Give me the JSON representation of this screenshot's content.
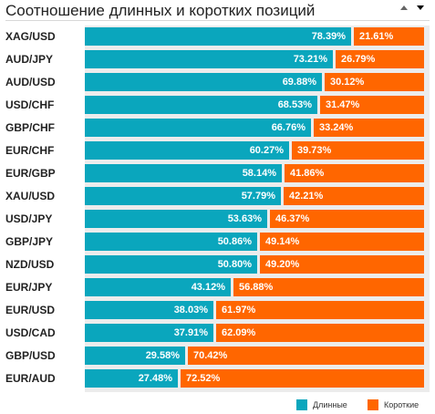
{
  "header": {
    "title": "Соотношение длинных и коротких позиций",
    "up_icon": "triangle-up-icon",
    "down_icon": "triangle-down-icon"
  },
  "colors": {
    "long": "#0aa6bd",
    "short": "#ff6600",
    "plot_bg": "#ececec"
  },
  "chart_data": {
    "type": "bar",
    "orientation": "horizontal-stacked-100",
    "title": "Соотношение длинных и коротких позиций",
    "categories": [
      "XAG/USD",
      "AUD/JPY",
      "AUD/USD",
      "USD/CHF",
      "GBP/CHF",
      "EUR/CHF",
      "EUR/GBP",
      "XAU/USD",
      "USD/JPY",
      "GBP/JPY",
      "NZD/USD",
      "EUR/JPY",
      "EUR/USD",
      "USD/CAD",
      "GBP/USD",
      "EUR/AUD"
    ],
    "series": [
      {
        "name": "Длинные",
        "values": [
          78.39,
          73.21,
          69.88,
          68.53,
          66.76,
          60.27,
          58.14,
          57.79,
          53.63,
          50.86,
          50.8,
          43.12,
          38.03,
          37.91,
          29.58,
          27.48
        ]
      },
      {
        "name": "Короткие",
        "values": [
          21.61,
          26.79,
          30.12,
          31.47,
          33.24,
          39.73,
          41.86,
          42.21,
          46.37,
          49.14,
          49.2,
          56.88,
          61.97,
          62.09,
          70.42,
          72.52
        ]
      }
    ],
    "value_format": "%",
    "xlim": [
      0,
      100
    ],
    "legend_position": "bottom-right"
  }
}
